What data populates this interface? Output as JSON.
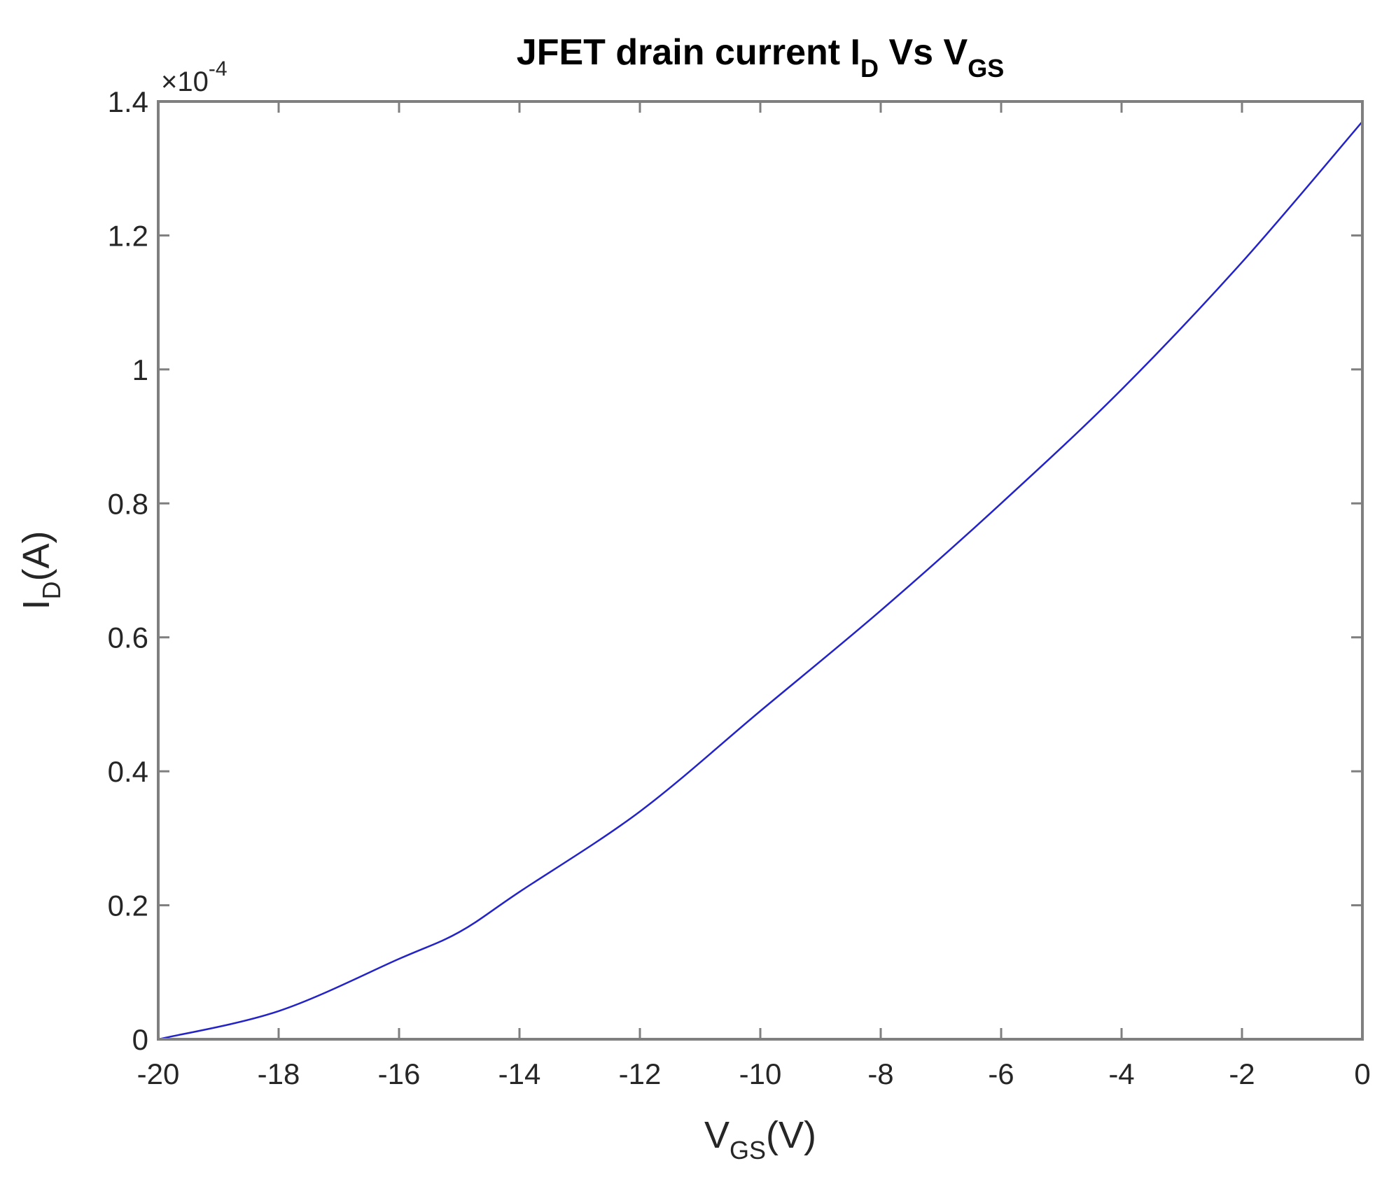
{
  "chart_data": {
    "type": "line",
    "title": {
      "base": "JFET drain current I",
      "sub1": "D",
      "mid": " Vs V",
      "sub2": "GS"
    },
    "xlabel": {
      "base": "V",
      "sub": "GS",
      "suffix": "(V)"
    },
    "ylabel": {
      "base": "I",
      "sub": "D",
      "suffix": "(A)"
    },
    "y_exponent": {
      "prefix": "×10",
      "power": "-4"
    },
    "xlim": [
      -20,
      0
    ],
    "ylim": [
      0,
      1.4
    ],
    "y_scale_factor": 0.0001,
    "x_ticks": [
      -20,
      -18,
      -16,
      -14,
      -12,
      -10,
      -8,
      -6,
      -4,
      -2,
      0
    ],
    "x_tick_labels": [
      "-20",
      "-18",
      "-16",
      "-14",
      "-12",
      "-10",
      "-8",
      "-6",
      "-4",
      "-2",
      "0"
    ],
    "y_ticks": [
      0,
      0.2,
      0.4,
      0.6,
      0.8,
      1.0,
      1.2,
      1.4
    ],
    "y_tick_labels": [
      "0",
      "0.2",
      "0.4",
      "0.6",
      "0.8",
      "1",
      "1.2",
      "1.4"
    ],
    "grid": false,
    "series": [
      {
        "color": "#2323c8",
        "x": [
          -20,
          -18,
          -16,
          -15,
          -14,
          -12,
          -10,
          -8,
          -6,
          -4,
          -2,
          0
        ],
        "y": [
          0.0,
          0.042,
          0.12,
          0.16,
          0.22,
          0.34,
          0.49,
          0.64,
          0.8,
          0.97,
          1.16,
          1.37
        ]
      }
    ]
  },
  "colors": {
    "axes": "#7f7f7f",
    "text": "#262626",
    "line": "#2323c8"
  }
}
